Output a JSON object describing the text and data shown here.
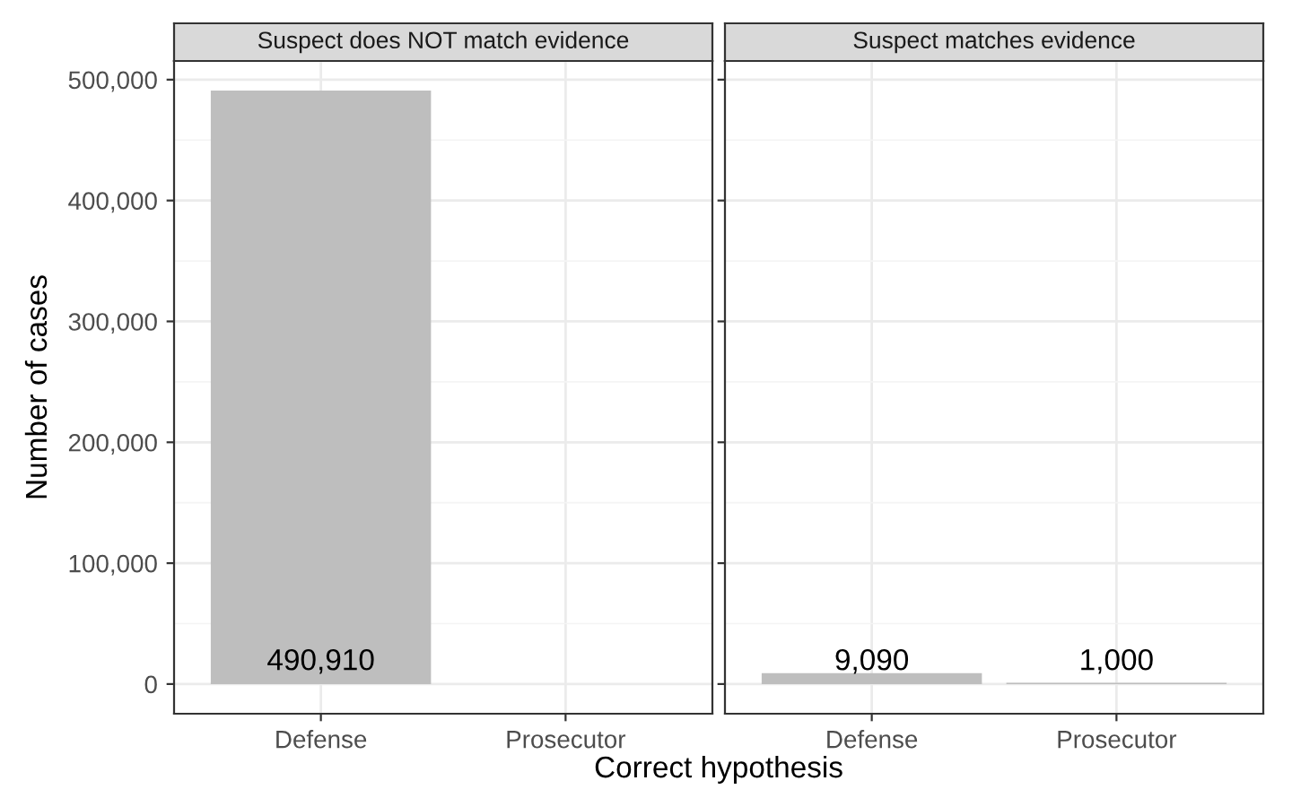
{
  "chart_data": [
    {
      "type": "bar",
      "title": "Suspect does NOT match evidence",
      "xlabel": "Correct hypothesis",
      "ylabel": "Number of cases",
      "categories": [
        "Defense",
        "Prosecutor"
      ],
      "values": [
        490910,
        null
      ],
      "color": "#bebebe",
      "value_labels": [
        "490,910",
        null
      ],
      "ylim": [
        -24545,
        515455
      ],
      "yticks": [
        {
          "value": 0,
          "label": "0"
        },
        {
          "value": 100000,
          "label": "100,000"
        },
        {
          "value": 200000,
          "label": "200,000"
        },
        {
          "value": 300000,
          "label": "300,000"
        },
        {
          "value": 400000,
          "label": "400,000"
        },
        {
          "value": 500000,
          "label": "500,000"
        }
      ],
      "grid": true
    },
    {
      "type": "bar",
      "title": "Suspect matches evidence",
      "categories": [
        "Defense",
        "Prosecutor"
      ],
      "values": [
        9090,
        1000
      ],
      "color": "#bebebe",
      "value_labels": [
        "9,090",
        "1,000"
      ],
      "ylim": [
        -24545,
        515455
      ],
      "yticks": [
        {
          "value": 0,
          "label": null
        },
        {
          "value": 100000,
          "label": null
        },
        {
          "value": 200000,
          "label": null
        },
        {
          "value": 300000,
          "label": null
        },
        {
          "value": 400000,
          "label": null
        },
        {
          "value": 500000,
          "label": null
        }
      ],
      "grid": true,
      "tick_labels": "x"
    }
  ]
}
